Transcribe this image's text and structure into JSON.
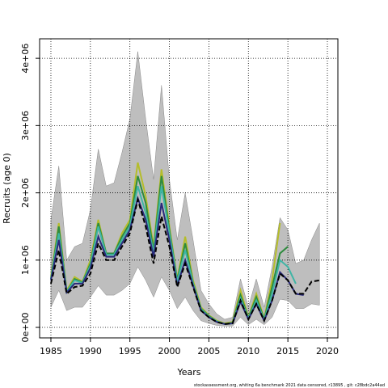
{
  "chart_data": {
    "type": "line",
    "xlabel": "Years",
    "ylabel": "Recruits (age 0)",
    "footer": "stockassessment.org, whiting 6a benchmark 2021 data censored, r13895 , git: c28bdc2a44ad",
    "x": [
      1985,
      1986,
      1987,
      1988,
      1989,
      1990,
      1991,
      1992,
      1993,
      1994,
      1995,
      1996,
      1997,
      1998,
      1999,
      2000,
      2001,
      2002,
      2003,
      2004,
      2005,
      2006,
      2007,
      2008,
      2009,
      2010,
      2011,
      2012,
      2013,
      2014,
      2015,
      2016,
      2017,
      2018,
      2019
    ],
    "xlim": [
      1983.57,
      2021.33
    ],
    "xticks": [
      1985,
      1990,
      1995,
      2000,
      2005,
      2010,
      2015,
      2020
    ],
    "ylim": [
      -156000,
      4290000
    ],
    "yticks": [
      {
        "value": 0,
        "label": "0e+00"
      },
      {
        "value": 1000000,
        "label": "1e+06"
      },
      {
        "value": 2000000,
        "label": "2e+06"
      },
      {
        "value": 3000000,
        "label": "3e+06"
      },
      {
        "value": 4000000,
        "label": "4e+06"
      }
    ],
    "grid": true,
    "band": {
      "color": "#bebebe",
      "upper": [
        1600000,
        2400000,
        1000000,
        1200000,
        1250000,
        1750000,
        2650000,
        2100000,
        2150000,
        2600000,
        3100000,
        4100000,
        3100000,
        2200000,
        3600000,
        2200000,
        1300000,
        2000000,
        1300000,
        550000,
        350000,
        200000,
        120000,
        150000,
        720000,
        300000,
        720000,
        300000,
        900000,
        1630000,
        1450000,
        950000,
        1000000,
        1300000,
        1550000
      ],
      "lower": [
        300000,
        550000,
        250000,
        300000,
        300000,
        450000,
        620000,
        480000,
        480000,
        550000,
        650000,
        900000,
        700000,
        450000,
        750000,
        550000,
        280000,
        450000,
        250000,
        100000,
        60000,
        30000,
        20000,
        20000,
        150000,
        40000,
        120000,
        40000,
        150000,
        420000,
        400000,
        280000,
        280000,
        350000,
        330000
      ]
    },
    "series": [
      {
        "color": "#b5bd2b",
        "values": [
          750000,
          1550000,
          550000,
          750000,
          680000,
          1000000,
          1600000,
          1100000,
          1100000,
          1400000,
          1600000,
          2450000,
          1950000,
          1200000,
          2350000,
          1500000,
          720000,
          1350000,
          700000,
          300000,
          180000,
          100000,
          60000,
          80000,
          550000,
          150000,
          500000,
          130000,
          700000,
          1550000,
          null,
          null,
          null,
          null,
          null
        ]
      },
      {
        "color": "#2e8b3e",
        "values": [
          720000,
          1500000,
          530000,
          720000,
          670000,
          950000,
          1550000,
          1100000,
          1100000,
          1350000,
          1550000,
          2250000,
          1850000,
          1150000,
          2250000,
          1450000,
          700000,
          1250000,
          660000,
          280000,
          170000,
          90000,
          50000,
          70000,
          480000,
          140000,
          450000,
          120000,
          600000,
          1100000,
          1200000,
          null,
          null,
          null,
          null
        ]
      },
      {
        "color": "#3fb5a5",
        "values": [
          720000,
          1400000,
          530000,
          700000,
          660000,
          920000,
          1500000,
          1080000,
          1080000,
          1300000,
          1500000,
          2100000,
          1700000,
          1100000,
          2100000,
          1400000,
          680000,
          1150000,
          650000,
          270000,
          160000,
          90000,
          50000,
          60000,
          430000,
          130000,
          400000,
          110000,
          500000,
          1000000,
          900000,
          650000,
          null,
          null,
          null
        ]
      },
      {
        "color": "#2a2a7a",
        "values": [
          700000,
          1300000,
          520000,
          650000,
          650000,
          880000,
          1350000,
          1050000,
          1050000,
          1250000,
          1450000,
          1920000,
          1600000,
          1050000,
          1850000,
          1300000,
          620000,
          1000000,
          620000,
          250000,
          150000,
          80000,
          50000,
          60000,
          380000,
          120000,
          350000,
          100000,
          400000,
          820000,
          700000,
          500000,
          480000,
          null,
          null
        ]
      },
      {
        "color": "#000000",
        "linestyle": "dashed",
        "values": [
          650000,
          1150000,
          500000,
          600000,
          620000,
          800000,
          1250000,
          1000000,
          1000000,
          1200000,
          1400000,
          1900000,
          1500000,
          950000,
          1650000,
          1200000,
          600000,
          950000,
          600000,
          250000,
          150000,
          80000,
          50000,
          60000,
          400000,
          120000,
          350000,
          100000,
          400000,
          800000,
          700000,
          500000,
          500000,
          680000,
          700000
        ]
      }
    ]
  }
}
